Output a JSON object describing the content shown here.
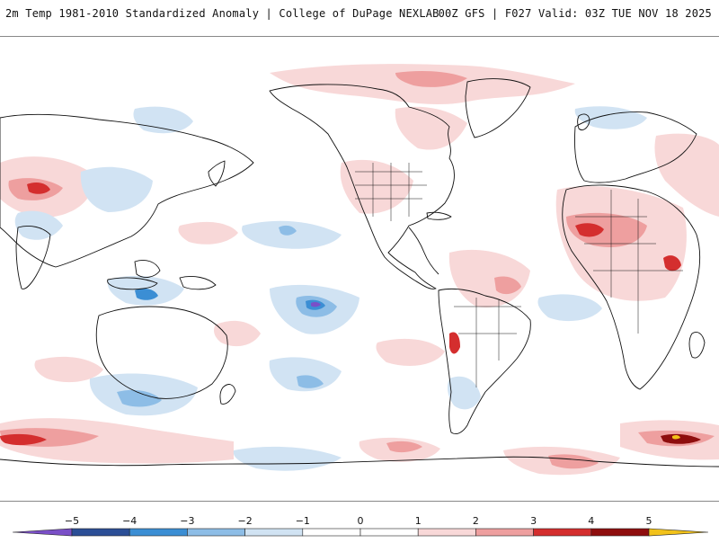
{
  "header": {
    "title_left": "2m Temp 1981-2010 Standardized Anomaly | College of DuPage NEXLAB",
    "title_right": "00Z GFS | F027 Valid: 03Z TUE NOV 18 2025"
  },
  "colorbar": {
    "labels": [
      "−5",
      "−4",
      "−3",
      "−2",
      "−1",
      "0",
      "1",
      "2",
      "3",
      "4",
      "5"
    ],
    "colors": {
      "below_min": "#7a4fc7",
      "n5_n4": "#2b4e96",
      "n4_n3": "#3b8ed4",
      "n3_n2": "#8dbde6",
      "n2_n1": "#d1e3f3",
      "n1_0": "#ffffff",
      "0_1": "#ffffff",
      "1_2": "#f8d8d8",
      "2_3": "#ee9f9f",
      "3_4": "#d42e2e",
      "4_5": "#8e0d0d",
      "above_max": "#f2c21a"
    }
  },
  "map": {
    "projection": "global cylindrical, Pacific-centered",
    "coastline_color": "#111111",
    "warm_color": "#f6cfcf",
    "cold_color": "#d4e4f4"
  }
}
